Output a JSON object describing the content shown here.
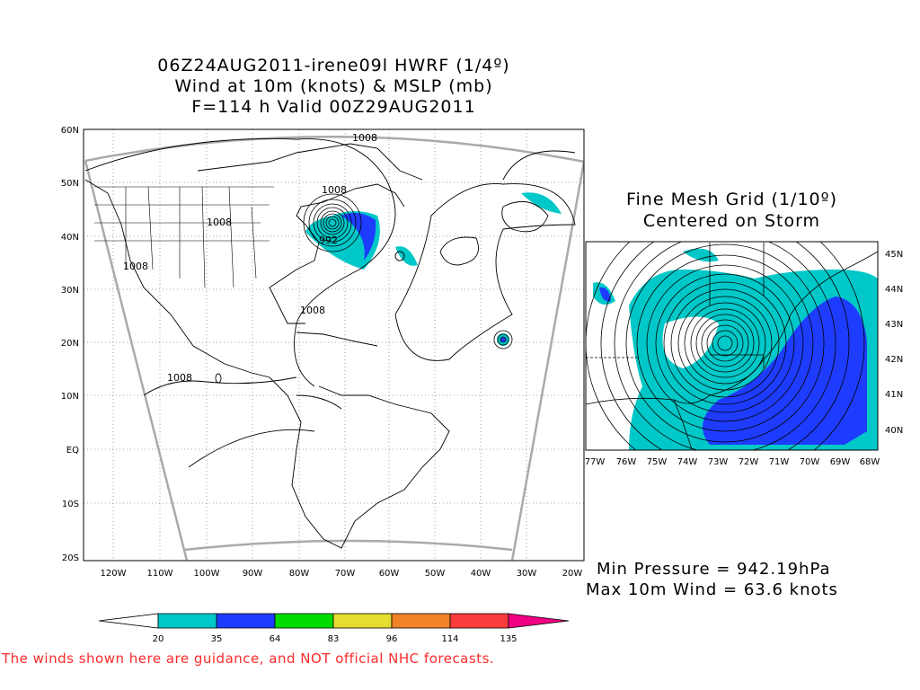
{
  "main_map": {
    "title_line1": "06Z24AUG2011-irene09l HWRF (1/4º)",
    "title_line2": "Wind at 10m (knots) & MSLP (mb)",
    "title_line3": "F=114 h Valid 00Z29AUG2011",
    "lat_labels": [
      "60N",
      "50N",
      "40N",
      "30N",
      "20N",
      "10N",
      "EQ",
      "10S",
      "20S"
    ],
    "lon_labels": [
      "120W",
      "110W",
      "100W",
      "90W",
      "80W",
      "70W",
      "60W",
      "50W",
      "40W",
      "30W",
      "20W"
    ],
    "contour_labels": [
      "1008",
      "1008",
      "1008",
      "1008",
      "1008",
      "1008",
      "992"
    ]
  },
  "inset_map": {
    "title_line1": "Fine Mesh Grid (1/10º)",
    "title_line2": "Centered on Storm",
    "lat_labels": [
      "45N",
      "44N",
      "43N",
      "42N",
      "41N",
      "40N"
    ],
    "lon_labels": [
      "77W",
      "76W",
      "75W",
      "74W",
      "73W",
      "72W",
      "71W",
      "70W",
      "69W",
      "68W"
    ]
  },
  "stats": {
    "min_pressure": "Min Pressure = 942.19hPa",
    "max_wind": "Max 10m Wind = 63.6 knots"
  },
  "colorbar": {
    "ticks": [
      "20",
      "35",
      "64",
      "83",
      "96",
      "114",
      "135"
    ],
    "colors": [
      "#ffffff",
      "#00c8c8",
      "#1e3cff",
      "#00dc00",
      "#e6dc32",
      "#f08228",
      "#fa3c3c",
      "#f00082"
    ]
  },
  "disclaimer": "The winds shown here are guidance, and NOT official NHC forecasts."
}
